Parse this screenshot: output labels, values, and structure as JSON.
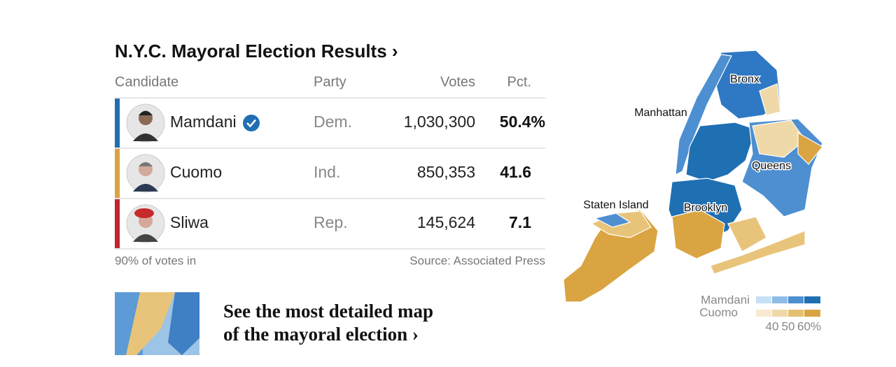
{
  "header": {
    "title": "N.Y.C. Mayoral Election Results ›"
  },
  "table": {
    "columns": [
      "Candidate",
      "Party",
      "Votes",
      "Pct."
    ],
    "rows": [
      [
        "Mamdani",
        "Dem.",
        "1,030,300",
        "50.4%"
      ],
      [
        "Cuomo",
        "Ind.",
        "850,353",
        "41.6"
      ],
      [
        "Sliwa",
        "Rep.",
        "145,624",
        "7.1"
      ]
    ]
  },
  "footer": {
    "reporting": "90% of votes in",
    "source": "Source: Associated Press"
  },
  "promo": {
    "lines": [
      "See the most detailed map",
      "of the mayoral election ›"
    ]
  },
  "map": {
    "labels": [
      "Bronx",
      "Manhattan",
      "Queens",
      "Staten Island",
      "Brooklyn"
    ],
    "legend": {
      "names": [
        "Mamdani",
        "Cuomo"
      ],
      "ticks": [
        "40",
        "50",
        "60%"
      ]
    }
  }
}
